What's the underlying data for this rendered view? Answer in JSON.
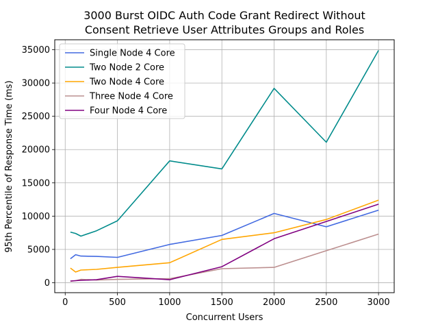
{
  "chart_data": {
    "type": "line",
    "title_lines": [
      "3000 Burst OIDC Auth Code Grant Redirect Without",
      "Consent Retrieve User Attributes Groups and Roles"
    ],
    "xlabel": "Concurrent Users",
    "ylabel": "95th Percentile of Response Time (ms)",
    "xlim": [
      -100,
      3150
    ],
    "ylim": [
      -1500,
      36500
    ],
    "xticks": [
      0,
      500,
      1000,
      1500,
      2000,
      2500,
      3000
    ],
    "yticks": [
      0,
      5000,
      10000,
      15000,
      20000,
      25000,
      30000,
      35000
    ],
    "grid": true,
    "legend_position": "top-left",
    "series": [
      {
        "name": "Single Node 4 Core",
        "color": "#4169e1",
        "x": [
          50,
          100,
          150,
          300,
          500,
          1000,
          1500,
          2000,
          2500,
          3000
        ],
        "y": [
          3600,
          4200,
          4000,
          3950,
          3800,
          5750,
          7100,
          10400,
          8400,
          10900
        ]
      },
      {
        "name": "Two Node 2 Core",
        "color": "#008b8b",
        "x": [
          50,
          100,
          150,
          300,
          500,
          1000,
          1500,
          2000,
          2500,
          3000
        ],
        "y": [
          7600,
          7400,
          7000,
          7800,
          9300,
          18300,
          17100,
          29200,
          21100,
          34900
        ]
      },
      {
        "name": "Two Node 4 Core",
        "color": "#ffa500",
        "x": [
          50,
          100,
          150,
          300,
          500,
          1000,
          1500,
          2000,
          2500,
          3000
        ],
        "y": [
          2200,
          1600,
          1900,
          2000,
          2300,
          3000,
          6500,
          7500,
          9500,
          12400
        ]
      },
      {
        "name": "Three Node 4 Core",
        "color": "#bc8f8f",
        "x": [
          50,
          100,
          150,
          300,
          500,
          1000,
          1500,
          2000,
          2500,
          3000
        ],
        "y": [
          200,
          300,
          500,
          400,
          500,
          600,
          2100,
          2300,
          4800,
          7300
        ]
      },
      {
        "name": "Four Node 4 Core",
        "color": "#800080",
        "x": [
          50,
          100,
          150,
          300,
          500,
          1000,
          1500,
          2000,
          2500,
          3000
        ],
        "y": [
          250,
          300,
          350,
          450,
          950,
          450,
          2400,
          6600,
          9200,
          11800
        ]
      }
    ]
  }
}
